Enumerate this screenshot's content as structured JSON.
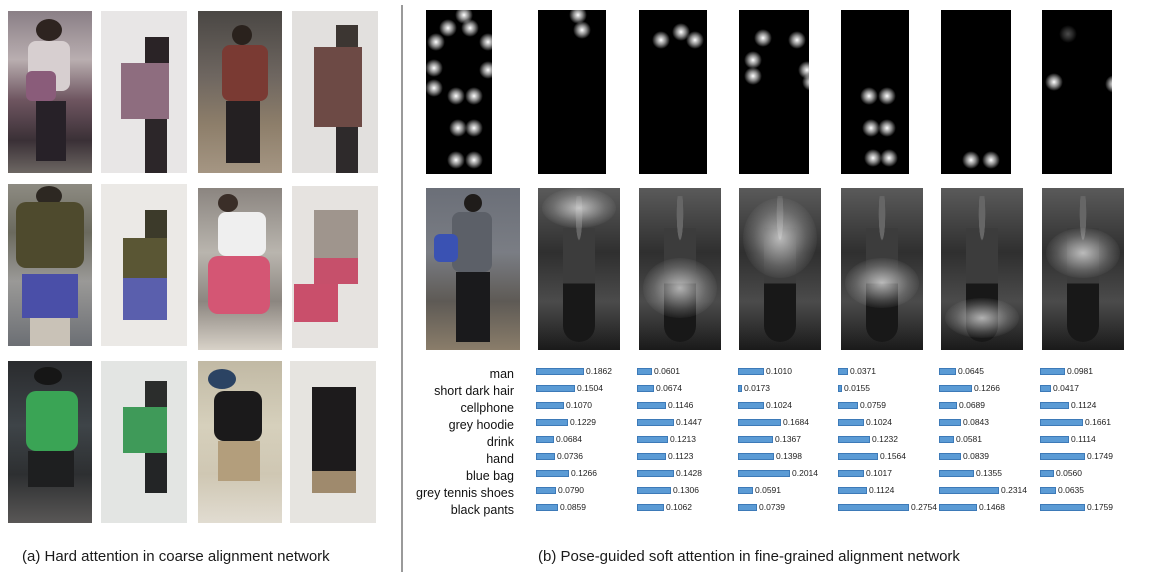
{
  "captions": {
    "left": "(a) Hard attention in coarse alignment network",
    "right": "(b) Pose-guided soft attention in fine-grained alignment network"
  },
  "attributes": [
    "man",
    "short dark hair",
    "cellphone",
    "grey hoodie",
    "drink",
    "hand",
    "blue bag",
    "grey tennis shoes",
    "black pants"
  ],
  "attention_columns": [
    {
      "values": [
        "0.1862",
        "0.1504",
        "0.1070",
        "0.1229",
        "0.0684",
        "0.0736",
        "0.1266",
        "0.0790",
        "0.0859"
      ]
    },
    {
      "values": [
        "0.0601",
        "0.0674",
        "0.1146",
        "0.1447",
        "0.1213",
        "0.1123",
        "0.1428",
        "0.1306",
        "0.1062"
      ]
    },
    {
      "values": [
        "0.1010",
        "0.0173",
        "0.1024",
        "0.1684",
        "0.1367",
        "0.1398",
        "0.2014",
        "0.0591",
        "0.0739"
      ]
    },
    {
      "values": [
        "0.0371",
        "0.0155",
        "0.0759",
        "0.1024",
        "0.1232",
        "0.1564",
        "0.1017",
        "0.1124",
        "0.2754"
      ]
    },
    {
      "values": [
        "0.0645",
        "0.1266",
        "0.0689",
        "0.0843",
        "0.0581",
        "0.0839",
        "0.1355",
        "0.2314",
        "0.1468"
      ]
    },
    {
      "values": [
        "0.0981",
        "0.0417",
        "0.1124",
        "0.1661",
        "0.1114",
        "0.1749",
        "0.0560",
        "0.0635",
        "0.1759"
      ]
    }
  ],
  "colors": {
    "bar": "#5b9bd5",
    "divider": "#9a9a9a"
  }
}
